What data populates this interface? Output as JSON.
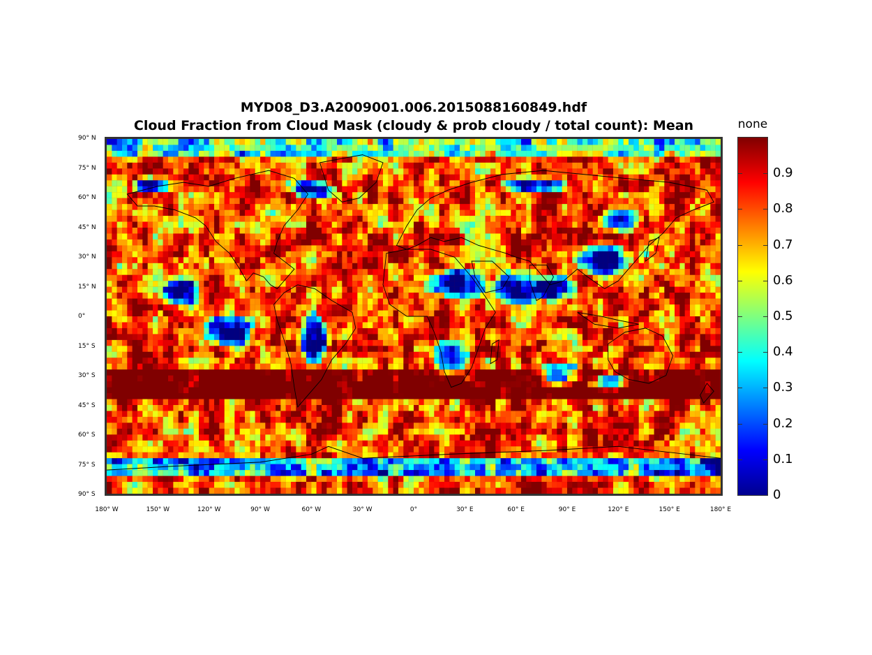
{
  "title_line1": "MYD08_D3.A2009001.006.2015088160849.hdf",
  "title_line2": "Cloud Fraction from Cloud Mask (cloudy & prob cloudy / total count): Mean",
  "colorbar": {
    "label": "none",
    "ticks": [
      "0.9",
      "0.8",
      "0.7",
      "0.6",
      "0.5",
      "0.4",
      "0.3",
      "0.2",
      "0.1",
      "0"
    ],
    "tick_values": [
      0.9,
      0.8,
      0.7,
      0.6,
      0.5,
      0.4,
      0.3,
      0.2,
      0.1,
      0
    ],
    "range": [
      0,
      1
    ],
    "colormap": "jet",
    "colors": [
      "#00008f",
      "#0000ff",
      "#007fff",
      "#00ffff",
      "#7fff7f",
      "#ffff00",
      "#ff7f00",
      "#ff0000",
      "#800000"
    ]
  },
  "lat_ticks": [
    "90° N",
    "75° N",
    "60° N",
    "45° N",
    "30° N",
    "15° N",
    "0°",
    "15° S",
    "30° S",
    "45° S",
    "60° S",
    "75° S",
    "90° S"
  ],
  "lat_values": [
    90,
    75,
    60,
    45,
    30,
    15,
    0,
    -15,
    -30,
    -45,
    -60,
    -75,
    -90
  ],
  "lon_ticks": [
    "180° W",
    "150° W",
    "120° W",
    "90° W",
    "60° W",
    "30° W",
    "0°",
    "30° E",
    "60° E",
    "90° E",
    "120° E",
    "150° E",
    "180° E"
  ],
  "lon_values": [
    -180,
    -150,
    -120,
    -90,
    -60,
    -30,
    0,
    30,
    60,
    90,
    120,
    150,
    180
  ],
  "map_extent": {
    "lon": [
      -180,
      180
    ],
    "lat": [
      -90,
      90
    ]
  }
}
